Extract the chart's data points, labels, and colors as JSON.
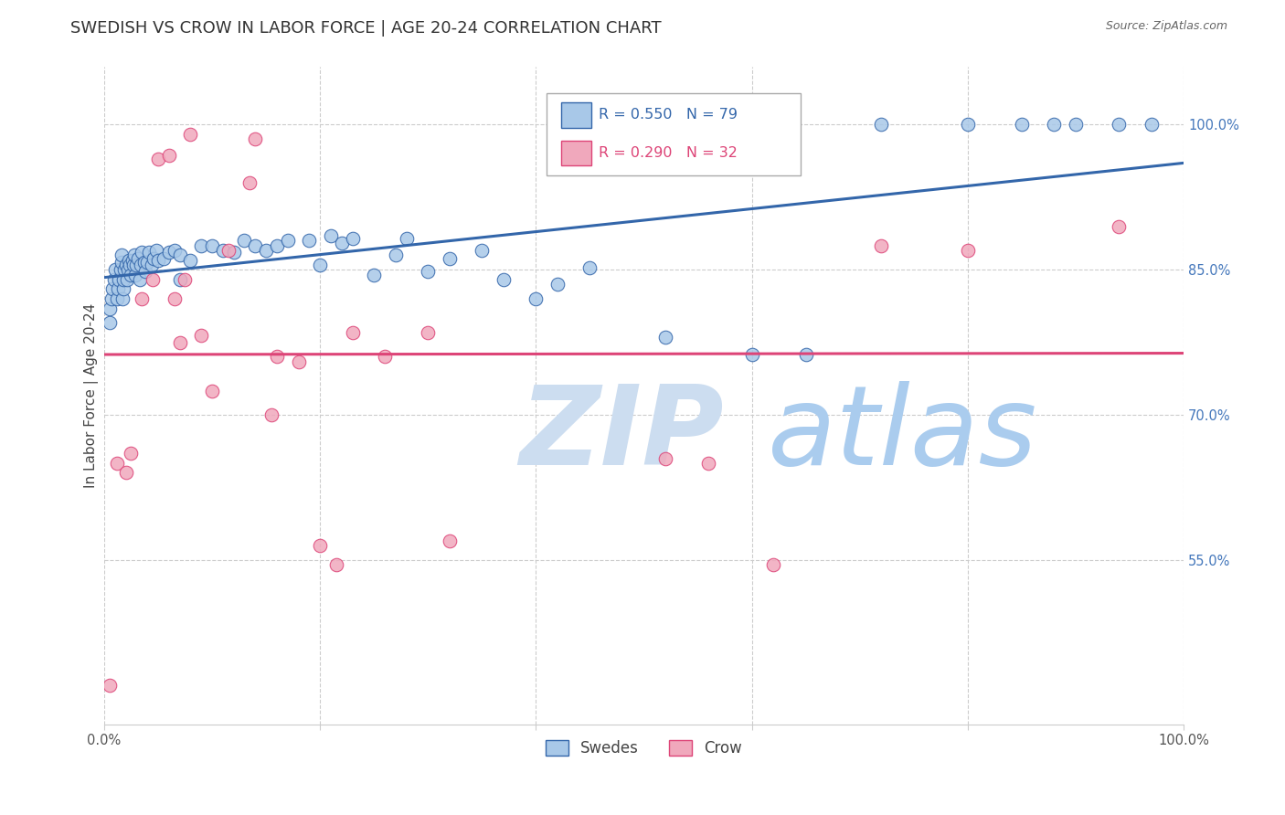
{
  "title": "SWEDISH VS CROW IN LABOR FORCE | AGE 20-24 CORRELATION CHART",
  "source": "Source: ZipAtlas.com",
  "xlabel": "",
  "ylabel": "In Labor Force | Age 20-24",
  "xlim": [
    0.0,
    1.0
  ],
  "ylim": [
    0.38,
    1.06
  ],
  "x_ticks": [
    0.0,
    0.2,
    0.4,
    0.6,
    0.8,
    1.0
  ],
  "x_tick_labels": [
    "0.0%",
    "",
    "",
    "",
    "",
    "100.0%"
  ],
  "y_ticks": [
    0.55,
    0.7,
    0.85,
    1.0
  ],
  "y_tick_labels": [
    "55.0%",
    "70.0%",
    "85.0%",
    "100.0%"
  ],
  "blue_color": "#a8c8e8",
  "pink_color": "#f0a8bc",
  "blue_line_color": "#3366aa",
  "pink_line_color": "#dd4477",
  "blue_R": 0.55,
  "blue_N": 79,
  "pink_R": 0.29,
  "pink_N": 32,
  "legend_swedes": "Swedes",
  "legend_crow": "Crow",
  "swedes_x": [
    0.005,
    0.005,
    0.007,
    0.008,
    0.009,
    0.01,
    0.012,
    0.013,
    0.014,
    0.015,
    0.016,
    0.016,
    0.017,
    0.018,
    0.018,
    0.019,
    0.02,
    0.021,
    0.022,
    0.023,
    0.024,
    0.025,
    0.026,
    0.027,
    0.028,
    0.029,
    0.03,
    0.031,
    0.033,
    0.034,
    0.035,
    0.037,
    0.038,
    0.04,
    0.042,
    0.044,
    0.046,
    0.048,
    0.05,
    0.055,
    0.06,
    0.065,
    0.07,
    0.07,
    0.08,
    0.09,
    0.1,
    0.11,
    0.12,
    0.13,
    0.14,
    0.15,
    0.16,
    0.17,
    0.19,
    0.2,
    0.21,
    0.22,
    0.23,
    0.25,
    0.27,
    0.28,
    0.3,
    0.32,
    0.35,
    0.37,
    0.4,
    0.42,
    0.45,
    0.52,
    0.6,
    0.65,
    0.72,
    0.8,
    0.85,
    0.88,
    0.9,
    0.94,
    0.97
  ],
  "swedes_y": [
    0.795,
    0.81,
    0.82,
    0.83,
    0.84,
    0.85,
    0.82,
    0.83,
    0.84,
    0.85,
    0.858,
    0.865,
    0.82,
    0.83,
    0.84,
    0.85,
    0.855,
    0.84,
    0.85,
    0.86,
    0.855,
    0.845,
    0.86,
    0.855,
    0.865,
    0.845,
    0.855,
    0.862,
    0.84,
    0.855,
    0.868,
    0.858,
    0.848,
    0.858,
    0.868,
    0.855,
    0.862,
    0.87,
    0.86,
    0.862,
    0.868,
    0.87,
    0.84,
    0.865,
    0.86,
    0.875,
    0.875,
    0.87,
    0.868,
    0.88,
    0.875,
    0.87,
    0.875,
    0.88,
    0.88,
    0.855,
    0.885,
    0.878,
    0.882,
    0.845,
    0.865,
    0.882,
    0.848,
    0.862,
    0.87,
    0.84,
    0.82,
    0.835,
    0.852,
    0.78,
    0.762,
    0.762,
    1.0,
    1.0,
    1.0,
    1.0,
    1.0,
    1.0,
    1.0
  ],
  "crow_x": [
    0.005,
    0.012,
    0.02,
    0.025,
    0.035,
    0.045,
    0.05,
    0.06,
    0.065,
    0.07,
    0.075,
    0.08,
    0.09,
    0.1,
    0.115,
    0.135,
    0.14,
    0.155,
    0.16,
    0.18,
    0.2,
    0.215,
    0.23,
    0.26,
    0.3,
    0.32,
    0.52,
    0.56,
    0.62,
    0.72,
    0.8,
    0.94
  ],
  "crow_y": [
    0.42,
    0.65,
    0.64,
    0.66,
    0.82,
    0.84,
    0.965,
    0.968,
    0.82,
    0.775,
    0.84,
    0.99,
    0.782,
    0.725,
    0.87,
    0.94,
    0.985,
    0.7,
    0.76,
    0.755,
    0.565,
    0.545,
    0.785,
    0.76,
    0.785,
    0.57,
    0.655,
    0.65,
    0.545,
    0.875,
    0.87,
    0.895
  ],
  "background_color": "#ffffff",
  "grid_color": "#cccccc",
  "title_fontsize": 13,
  "axis_label_fontsize": 11,
  "tick_fontsize": 10.5,
  "watermark_zip": "ZIP",
  "watermark_atlas": "atlas",
  "watermark_color_zip": "#ccddf0",
  "watermark_color_atlas": "#aaccee"
}
